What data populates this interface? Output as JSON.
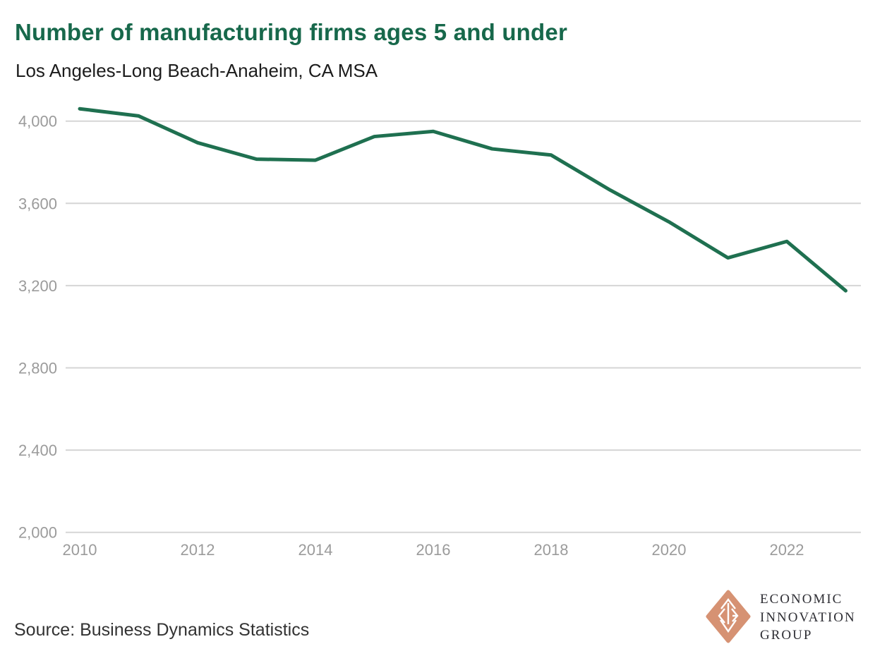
{
  "chart_data": {
    "type": "line",
    "title": "Number of manufacturing firms ages 5 and under",
    "subtitle": "Los Angeles-Long Beach-Anaheim, CA MSA",
    "xlabel": "",
    "ylabel": "",
    "x": [
      2010,
      2011,
      2012,
      2013,
      2014,
      2015,
      2016,
      2017,
      2018,
      2019,
      2020,
      2021,
      2022,
      2023
    ],
    "series": [
      {
        "name": "Manufacturing firms ages 5 and under",
        "values": [
          4060,
          4025,
          3895,
          3815,
          3810,
          3925,
          3950,
          3865,
          3835,
          3665,
          3510,
          3335,
          3415,
          3175
        ]
      }
    ],
    "ylim": [
      2000,
      4000
    ],
    "xlim": [
      2010,
      2023
    ],
    "yticks": [
      {
        "value": 2000,
        "label": "2,000"
      },
      {
        "value": 2400,
        "label": "2,400"
      },
      {
        "value": 2800,
        "label": "2,800"
      },
      {
        "value": 3200,
        "label": "3,200"
      },
      {
        "value": 3600,
        "label": "3,600"
      },
      {
        "value": 4000,
        "label": "4,000"
      }
    ],
    "xticks": [
      {
        "value": 2010,
        "label": "2010"
      },
      {
        "value": 2012,
        "label": "2012"
      },
      {
        "value": 2014,
        "label": "2014"
      },
      {
        "value": 2016,
        "label": "2016"
      },
      {
        "value": 2018,
        "label": "2018"
      },
      {
        "value": 2020,
        "label": "2020"
      },
      {
        "value": 2022,
        "label": "2022"
      }
    ],
    "grid": "horizontal",
    "legend": "none",
    "line_color": "#1f7050",
    "title_color": "#17684b"
  },
  "source": {
    "label": "Source: Business Dynamics Statistics"
  },
  "logo": {
    "lines": [
      "ECONOMIC",
      "INNOVATION",
      "GROUP"
    ],
    "mark_color": "#d69273"
  }
}
